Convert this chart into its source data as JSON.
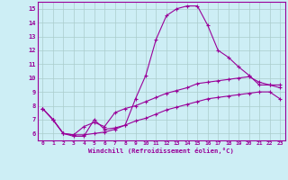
{
  "xlabel": "Windchill (Refroidissement éolien,°C)",
  "background_color": "#cdeef5",
  "line_color": "#990099",
  "grid_color": "#aadddd",
  "xlim": [
    -0.5,
    23.5
  ],
  "ylim": [
    5.5,
    15.5
  ],
  "xticks": [
    0,
    1,
    2,
    3,
    4,
    5,
    6,
    7,
    8,
    9,
    10,
    11,
    12,
    13,
    14,
    15,
    16,
    17,
    18,
    19,
    20,
    21,
    22,
    23
  ],
  "yticks": [
    6,
    7,
    8,
    9,
    10,
    11,
    12,
    13,
    14,
    15
  ],
  "series1_x": [
    0,
    1,
    2,
    3,
    4,
    5,
    6,
    7,
    8,
    9,
    10,
    11,
    12,
    13,
    14,
    15,
    16,
    17,
    18,
    19,
    20,
    21,
    22,
    23
  ],
  "series1_y": [
    7.8,
    7.0,
    6.0,
    5.8,
    5.8,
    7.0,
    6.3,
    6.4,
    6.6,
    8.5,
    10.2,
    12.8,
    14.5,
    15.0,
    15.2,
    15.2,
    13.8,
    12.0,
    11.5,
    10.8,
    10.2,
    9.5,
    9.5,
    9.5
  ],
  "series2_x": [
    0,
    1,
    2,
    3,
    4,
    5,
    6,
    7,
    8,
    9,
    10,
    11,
    12,
    13,
    14,
    15,
    16,
    17,
    18,
    19,
    20,
    21,
    22,
    23
  ],
  "series2_y": [
    7.8,
    7.0,
    6.0,
    5.9,
    6.5,
    6.8,
    6.5,
    7.5,
    7.8,
    8.0,
    8.3,
    8.6,
    8.9,
    9.1,
    9.3,
    9.6,
    9.7,
    9.8,
    9.9,
    10.0,
    10.1,
    9.7,
    9.5,
    9.3
  ],
  "series3_x": [
    0,
    1,
    2,
    3,
    4,
    5,
    6,
    7,
    8,
    9,
    10,
    11,
    12,
    13,
    14,
    15,
    16,
    17,
    18,
    19,
    20,
    21,
    22,
    23
  ],
  "series3_y": [
    7.8,
    7.0,
    6.0,
    5.9,
    5.9,
    6.0,
    6.1,
    6.3,
    6.6,
    6.9,
    7.1,
    7.4,
    7.7,
    7.9,
    8.1,
    8.3,
    8.5,
    8.6,
    8.7,
    8.8,
    8.9,
    9.0,
    9.0,
    8.5
  ]
}
